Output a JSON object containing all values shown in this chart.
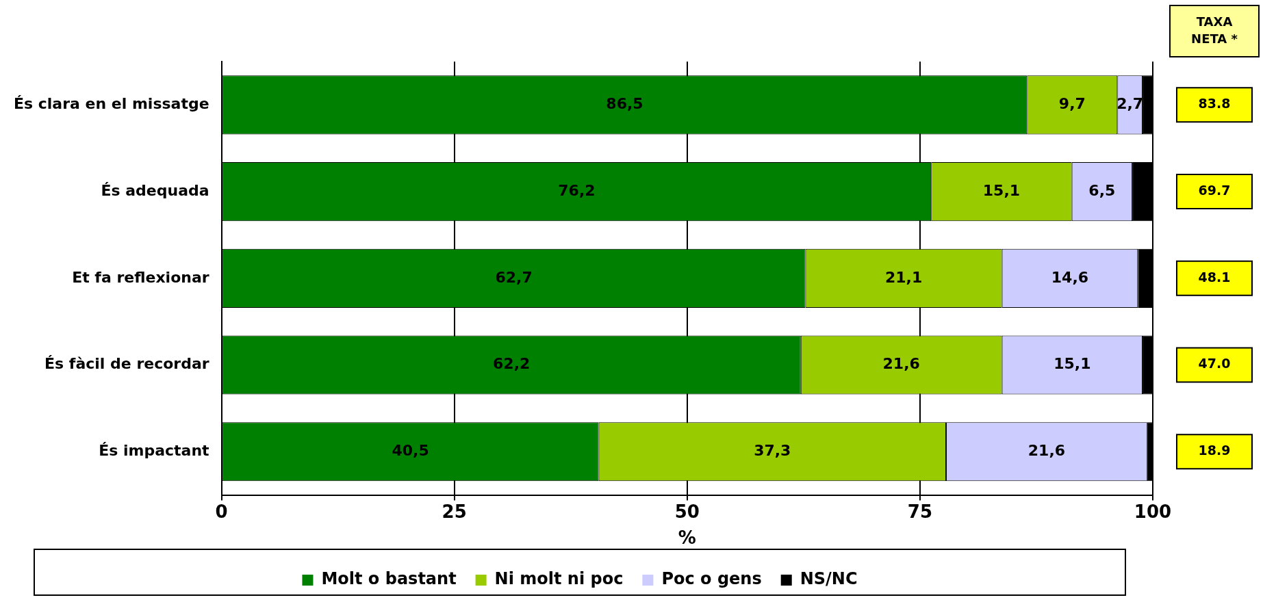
{
  "chart_data": {
    "type": "bar",
    "orientation": "horizontal",
    "stacked": true,
    "xlabel": "%",
    "categories": [
      "És clara en el missatge",
      "És adequada",
      "Et fa reflexionar",
      "És fàcil de recordar",
      "És impactant"
    ],
    "series": [
      {
        "name": "Molt o bastant",
        "color": "#008000",
        "values": [
          86.5,
          76.2,
          62.7,
          62.2,
          40.5
        ],
        "value_labels": [
          "86,5",
          "76,2",
          "62,7",
          "62,2",
          "40,5"
        ]
      },
      {
        "name": "Ni molt ni poc",
        "color": "#99cc00",
        "values": [
          9.7,
          15.1,
          21.1,
          21.6,
          37.3
        ],
        "value_labels": [
          "9,7",
          "15,1",
          "21,1",
          "21,6",
          "37,3"
        ]
      },
      {
        "name": "Poc o gens",
        "color": "#ccccff",
        "values": [
          2.7,
          6.5,
          14.6,
          15.1,
          21.6
        ],
        "value_labels": [
          "2,7",
          "6,5",
          "14,6",
          "15,1",
          "21,6"
        ]
      },
      {
        "name": "NS/NC",
        "color": "#000000",
        "values": [
          1.1,
          2.2,
          1.6,
          1.1,
          0.6
        ]
      }
    ],
    "xlim": [
      0,
      100
    ],
    "xticks": [
      0,
      25,
      50,
      75,
      100
    ],
    "grid": "x",
    "legend": "bottom",
    "annotations": [
      "TAXA NETA *",
      "83.8",
      "69.7",
      "48.1",
      "47.0",
      "18.9"
    ]
  }
}
